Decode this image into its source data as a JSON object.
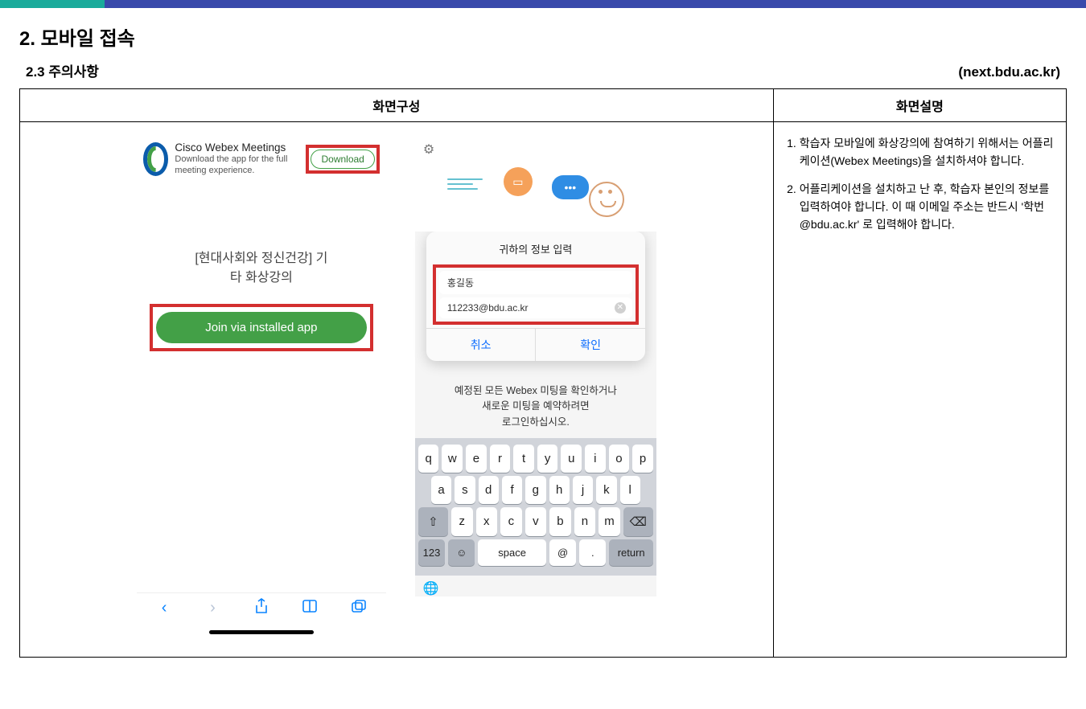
{
  "header": {
    "h1": "2. 모바일 접속",
    "h2": "2.3 주의사항",
    "site": "(next.bdu.ac.kr)"
  },
  "table": {
    "col_screen": "화면구성",
    "col_desc": "화면설명"
  },
  "phone1": {
    "app_name": "Cisco Webex Meetings",
    "app_sub": "Download the app for the full meeting experience.",
    "download": "Download",
    "course_l1": "[현대사회와 정신건강] 기",
    "course_l2": "타 화상강의",
    "join": "Join via installed app"
  },
  "phone2": {
    "dialog_title": "귀하의 정보 입력",
    "name": "홍길동",
    "email": "112233@bdu.ac.kr",
    "cancel": "취소",
    "ok": "확인",
    "msg": "예정된 모든 Webex 미팅을 확인하거나\n새로운 미팅을 예약하려면\n로그인하십시오.",
    "keys_r1": [
      "q",
      "w",
      "e",
      "r",
      "t",
      "y",
      "u",
      "i",
      "o",
      "p"
    ],
    "keys_r2": [
      "a",
      "s",
      "d",
      "f",
      "g",
      "h",
      "j",
      "k",
      "l"
    ],
    "keys_r3_mid": [
      "z",
      "x",
      "c",
      "v",
      "b",
      "n",
      "m"
    ],
    "key_shift": "⇧",
    "key_bksp": "⌫",
    "key_123": "123",
    "key_emoji": "☺",
    "key_space": "space",
    "key_at": "@",
    "key_dot": ".",
    "key_return": "return"
  },
  "desc": {
    "items": [
      "학습자 모바일에 화상강의에 참여하기 위해서는 어플리케이션(Webex Meetings)을 설치하셔야 합니다.",
      "어플리케이션을 설치하고 난 후, 학습자 본인의 정보를 입력하여야 합니다. 이 때 이메일 주소는 반드시 '학번@bdu.ac.kr' 로 입력해야 합니다."
    ]
  },
  "colors": {
    "highlight": "#d32f2f",
    "join_green": "#43a047",
    "ios_blue": "#0a84ff"
  }
}
